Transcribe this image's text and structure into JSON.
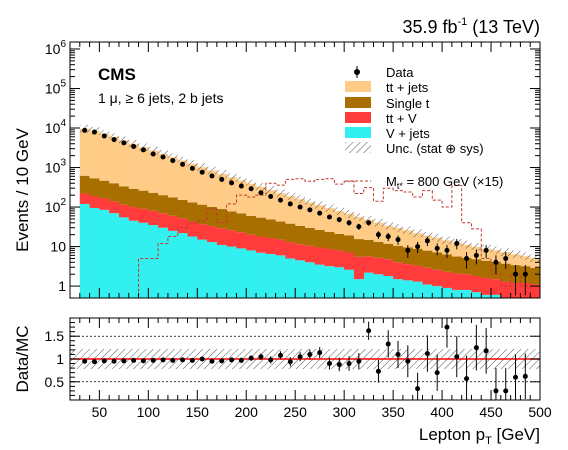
{
  "header": {
    "lumi_label": "35.9 fb",
    "lumi_sup": "-1",
    "energy_label": " (13 TeV)"
  },
  "labels": {
    "experiment": "CMS",
    "selection": "1 μ, ≥ 6 jets, 2 b jets",
    "y_main": "Events / 10 GeV",
    "y_ratio": "Data/MC",
    "x_main": "Lepton p",
    "x_sub": "T",
    "x_unit": " [GeV]"
  },
  "legend": {
    "data": "Data",
    "ttjets": "tt + jets",
    "singlet": "Single t",
    "ttv": "tt + V",
    "vjets": "V + jets",
    "unc": "Unc. (stat ⊕ sys)",
    "signal": "M",
    "signal_sub": "t*",
    "signal_rest": " = 800 GeV (×15)"
  },
  "colors": {
    "ttjets": "#ffcc88",
    "singlet": "#a86e00",
    "ttv": "#ff3b3b",
    "vjets": "#33f0f0",
    "signal": "#c0392b",
    "ratio_line": "#ff0000"
  },
  "chart_data": [
    {
      "type": "bar",
      "stacked": true,
      "log_y": true,
      "xlabel": "Lepton pT [GeV]",
      "ylabel": "Events / 10 GeV",
      "xlim": [
        20,
        500
      ],
      "ylim": [
        0.5,
        1500000
      ],
      "x_ticks": [
        50,
        100,
        150,
        200,
        250,
        300,
        350,
        400,
        450,
        500
      ],
      "y_ticks": [
        "1",
        "10",
        "10^2",
        "10^3",
        "10^4",
        "10^5",
        "10^6"
      ],
      "bin_edges": [
        30,
        40,
        50,
        60,
        70,
        80,
        90,
        100,
        110,
        120,
        130,
        140,
        150,
        160,
        170,
        180,
        190,
        200,
        210,
        220,
        230,
        240,
        250,
        260,
        270,
        280,
        290,
        300,
        310,
        320,
        330,
        340,
        350,
        360,
        370,
        380,
        390,
        400,
        410,
        420,
        430,
        440,
        450,
        460,
        470,
        480,
        490,
        500
      ],
      "series": [
        {
          "name": "V + jets",
          "values": [
            120,
            95,
            85,
            70,
            55,
            45,
            40,
            35,
            30,
            25,
            22,
            18,
            15,
            13,
            11,
            10,
            9,
            8,
            7,
            6.5,
            6,
            5,
            4.5,
            4,
            3.5,
            3.2,
            3,
            2.6,
            1.5,
            2.2,
            2,
            1.8,
            1.5,
            1.4,
            1.3,
            1.1,
            1,
            0.9,
            0.8,
            0.8,
            0.7,
            0.6,
            0.6,
            0.5,
            0.5,
            0.5,
            0.5
          ]
        },
        {
          "name": "tt + V",
          "values": [
            100,
            90,
            80,
            70,
            60,
            55,
            50,
            45,
            40,
            35,
            30,
            25,
            22,
            20,
            18,
            16,
            14,
            12,
            11,
            10,
            9,
            8,
            7,
            6.5,
            6,
            5.5,
            5,
            4.5,
            4,
            3.5,
            3.2,
            3,
            2.5,
            2.2,
            2,
            1.8,
            1.6,
            1.4,
            1.3,
            1.2,
            1.1,
            1,
            0.9,
            0.8,
            0.7,
            0.7,
            0.6
          ]
        },
        {
          "name": "Single t",
          "values": [
            400,
            350,
            300,
            260,
            220,
            190,
            170,
            150,
            130,
            115,
            100,
            88,
            78,
            68,
            60,
            52,
            46,
            40,
            36,
            32,
            28,
            25,
            22,
            19,
            17,
            15,
            13,
            12,
            10,
            9,
            8,
            7,
            6.5,
            6,
            5.5,
            5,
            4.5,
            4,
            3.5,
            3.2,
            3,
            2.8,
            2.6,
            2.4,
            2.2,
            2,
            1.8
          ]
        },
        {
          "name": "tt + jets",
          "values": [
            9000,
            8000,
            6600,
            5500,
            4500,
            3700,
            3000,
            2450,
            2000,
            1650,
            1350,
            1100,
            900,
            740,
            600,
            490,
            400,
            330,
            270,
            220,
            180,
            150,
            125,
            100,
            85,
            70,
            58,
            48,
            40,
            33,
            27,
            22,
            19,
            16,
            13,
            11,
            9.5,
            8,
            7,
            6,
            5,
            4.5,
            4,
            3.5,
            3,
            2.5,
            2.2
          ]
        },
        {
          "name": "M t* = 800 GeV (×15)",
          "kind": "dashed-outline",
          "values": [
            0.5,
            0.5,
            0.5,
            0.5,
            0.5,
            0.5,
            5,
            5,
            12,
            18,
            30,
            40,
            45,
            90,
            40,
            120,
            200,
            180,
            200,
            400,
            360,
            500,
            520,
            450,
            500,
            520,
            380,
            450,
            220,
            310,
            140,
            300,
            260,
            240,
            180,
            260,
            150,
            100,
            350,
            40,
            28,
            5,
            2,
            1,
            2,
            1,
            0.5
          ]
        }
      ],
      "data_points": {
        "name": "Data",
        "x": [
          35,
          45,
          55,
          65,
          75,
          85,
          95,
          105,
          115,
          125,
          135,
          145,
          155,
          165,
          175,
          185,
          195,
          205,
          215,
          225,
          235,
          245,
          255,
          265,
          275,
          285,
          295,
          305,
          315,
          325,
          335,
          345,
          355,
          365,
          375,
          385,
          395,
          405,
          415,
          425,
          435,
          445,
          455,
          465,
          475,
          485
        ],
        "y": [
          8700,
          7900,
          6300,
          5100,
          4200,
          3400,
          2800,
          2200,
          1850,
          1500,
          1200,
          950,
          760,
          610,
          500,
          410,
          340,
          290,
          230,
          185,
          150,
          120,
          100,
          85,
          70,
          56,
          48,
          40,
          32,
          40,
          20,
          18,
          15,
          8,
          10,
          14,
          9,
          8,
          12,
          5,
          6,
          8,
          4,
          5,
          2,
          2
        ]
      }
    },
    {
      "type": "scatter",
      "ylabel": "Data/MC",
      "xlim": [
        20,
        500
      ],
      "ylim": [
        0.1,
        1.9
      ],
      "y_ticks": [
        0.5,
        1,
        1.5
      ],
      "reference_line": 1,
      "x": [
        35,
        45,
        55,
        65,
        75,
        85,
        95,
        105,
        115,
        125,
        135,
        145,
        155,
        165,
        175,
        185,
        195,
        205,
        215,
        225,
        235,
        245,
        255,
        265,
        275,
        285,
        295,
        305,
        315,
        325,
        335,
        345,
        355,
        365,
        375,
        385,
        395,
        405,
        415,
        425,
        435,
        445,
        455,
        465,
        475,
        485
      ],
      "y": [
        0.95,
        0.94,
        0.96,
        0.95,
        0.96,
        0.97,
        0.96,
        0.97,
        0.98,
        0.97,
        0.98,
        0.97,
        1.0,
        0.95,
        0.96,
        0.98,
        0.97,
        1.02,
        1.05,
        0.98,
        1.08,
        0.94,
        1.05,
        1.1,
        1.14,
        0.9,
        0.88,
        0.9,
        0.95,
        1.62,
        0.73,
        1.33,
        1.1,
        0.95,
        0.35,
        1.12,
        0.7,
        1.7,
        1.05,
        0.57,
        1.25,
        1.18,
        0.3,
        0.3,
        0.6,
        0.62
      ],
      "err": [
        0.02,
        0.02,
        0.02,
        0.02,
        0.02,
        0.02,
        0.03,
        0.03,
        0.03,
        0.03,
        0.03,
        0.04,
        0.04,
        0.04,
        0.05,
        0.05,
        0.06,
        0.06,
        0.07,
        0.08,
        0.09,
        0.1,
        0.1,
        0.11,
        0.12,
        0.13,
        0.15,
        0.16,
        0.18,
        0.2,
        0.25,
        0.3,
        0.3,
        0.35,
        0.35,
        0.4,
        0.4,
        0.45,
        0.45,
        0.5,
        0.5,
        0.5,
        0.5,
        0.5,
        0.5,
        0.5
      ]
    }
  ]
}
